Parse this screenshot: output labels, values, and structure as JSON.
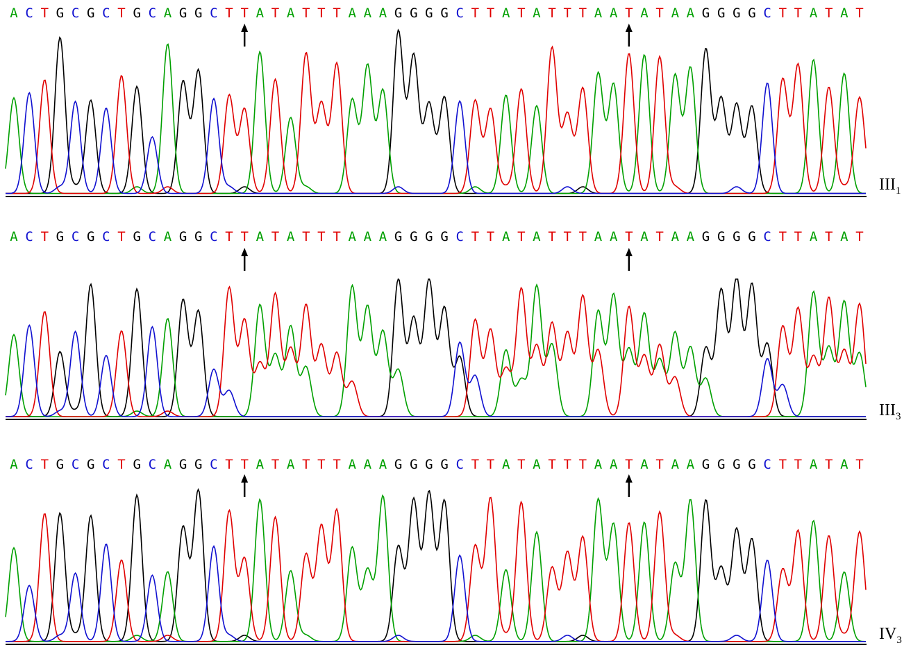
{
  "colors": {
    "A": "#00a000",
    "C": "#1010d0",
    "G": "#000000",
    "T": "#e00000"
  },
  "panels": [
    {
      "label": "III",
      "label_sub": "1",
      "sequence": "ACTGCGCTGCAGGCTTATATTTAAAGGGGCTTATATTTAATATAAGGGGCTTATAT",
      "arrow_bases": [
        15,
        40
      ],
      "heterozygous": false
    },
    {
      "label": "III",
      "label_sub": "3",
      "sequence": "ACTGCGCTGCAGGCTTATATTTAAAGGGGCTTATATTTAATATAAGGGGCTTATAT",
      "arrow_bases": [
        15,
        40
      ],
      "heterozygous": true
    },
    {
      "label": "IV",
      "label_sub": "3",
      "sequence": "ACTGCGCTGCAGGCTTATATTTAAAGGGGCTTATATTTAATATAAGGGGCTTATAT",
      "arrow_bases": [
        15,
        40
      ],
      "heterozygous": false
    }
  ]
}
